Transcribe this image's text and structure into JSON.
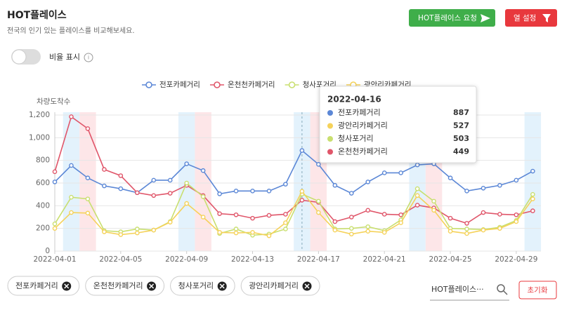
{
  "header": {
    "title": "HOT플레이스",
    "subtitle": "전국의 인기 있는 플레이스를 비교해보세요."
  },
  "buttons": {
    "request": "HOT플레이스 요청",
    "columns": "열 설정"
  },
  "toggle_label": "비율 표시",
  "chart_data": {
    "type": "line",
    "ylabel": "차량도착수",
    "x": [
      "2022-04-01",
      "2022-04-02",
      "2022-04-03",
      "2022-04-04",
      "2022-04-05",
      "2022-04-06",
      "2022-04-07",
      "2022-04-08",
      "2022-04-09",
      "2022-04-10",
      "2022-04-11",
      "2022-04-12",
      "2022-04-13",
      "2022-04-14",
      "2022-04-15",
      "2022-04-16",
      "2022-04-17",
      "2022-04-18",
      "2022-04-19",
      "2022-04-20",
      "2022-04-21",
      "2022-04-22",
      "2022-04-23",
      "2022-04-24",
      "2022-04-25",
      "2022-04-26",
      "2022-04-27",
      "2022-04-28",
      "2022-04-29",
      "2022-04-30"
    ],
    "xticks": [
      "2022-04-01",
      "2022-04-05",
      "2022-04-09",
      "2022-04-13",
      "2022-04-17",
      "2022-04-21",
      "2022-04-25",
      "2022-04-29"
    ],
    "ylim": [
      0,
      1200
    ],
    "yticks": [
      0,
      200,
      400,
      600,
      800,
      {
        "value": 1000,
        "label": "1,000"
      },
      {
        "value": 1200,
        "label": "1,200"
      }
    ],
    "grid": true,
    "series": [
      {
        "name": "전포카페거리",
        "color": "#5b87d6",
        "values": [
          610,
          755,
          645,
          575,
          550,
          515,
          625,
          625,
          770,
          710,
          505,
          530,
          530,
          530,
          590,
          887,
          765,
          580,
          510,
          610,
          690,
          690,
          760,
          770,
          645,
          530,
          555,
          580,
          625,
          705
        ]
      },
      {
        "name": "온천천카페거리",
        "color": "#e0566a",
        "values": [
          700,
          1185,
          1080,
          720,
          665,
          515,
          490,
          510,
          580,
          490,
          330,
          320,
          290,
          315,
          325,
          449,
          430,
          260,
          300,
          360,
          325,
          320,
          405,
          380,
          290,
          245,
          340,
          325,
          320,
          355
        ]
      },
      {
        "name": "청사포거리",
        "color": "#c9df6f",
        "values": [
          240,
          475,
          460,
          180,
          170,
          195,
          185,
          260,
          600,
          480,
          155,
          195,
          140,
          150,
          195,
          503,
          440,
          195,
          200,
          215,
          180,
          275,
          550,
          440,
          200,
          195,
          190,
          210,
          270,
          500
        ]
      },
      {
        "name": "광안리카페거리",
        "color": "#f5d25a",
        "values": [
          200,
          340,
          335,
          170,
          145,
          160,
          185,
          255,
          420,
          300,
          165,
          160,
          165,
          135,
          250,
          527,
          340,
          185,
          150,
          175,
          165,
          250,
          490,
          360,
          175,
          155,
          185,
          200,
          260,
          460
        ]
      }
    ],
    "tooltip": {
      "x": "2022-04-16"
    }
  },
  "filters": {
    "search_placeholder": "HOT플레이스···",
    "reset": "초기화"
  }
}
